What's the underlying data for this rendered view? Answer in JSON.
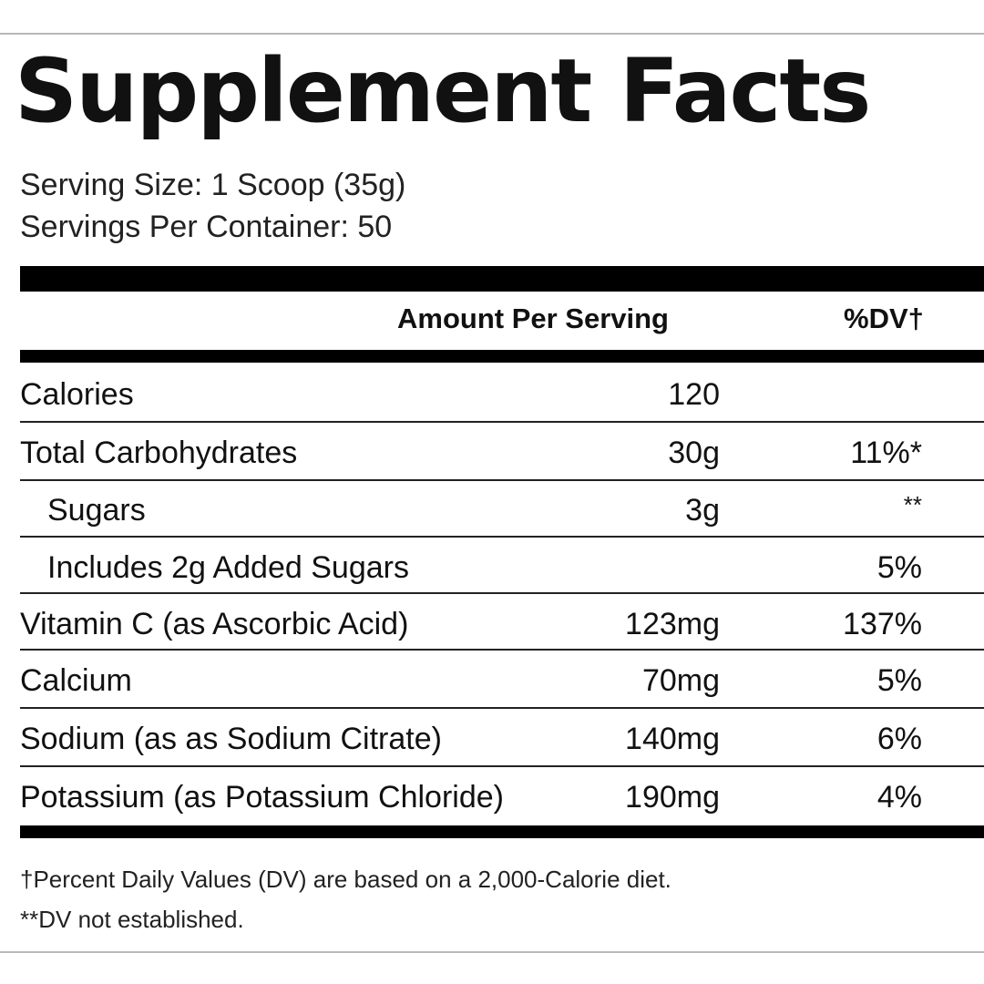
{
  "title": "Supplement Facts",
  "serving_size": "Serving Size: 1 Scoop (35g)",
  "servings_per_container": "Servings Per Container: 50",
  "header": {
    "amount": "Amount Per Serving",
    "dv": "%DV†"
  },
  "rows": [
    {
      "label": "Calories",
      "amount": "120",
      "dv": ""
    },
    {
      "label": "Total Carbohydrates",
      "amount": "30g",
      "dv": "11%*"
    },
    {
      "label": "Sugars",
      "amount": "3g",
      "dv": "**"
    },
    {
      "label": "Includes 2g Added Sugars",
      "amount": "",
      "dv": "5%"
    },
    {
      "label": "Vitamin C (as Ascorbic Acid)",
      "amount": "123mg",
      "dv": "137%"
    },
    {
      "label": "Calcium",
      "amount": "70mg",
      "dv": "5%"
    },
    {
      "label": "Sodium (as as Sodium Citrate)",
      "amount": "140mg",
      "dv": "6%"
    },
    {
      "label": "Potassium (as Potassium Chloride)",
      "amount": "190mg",
      "dv": "4%"
    }
  ],
  "footnotes": {
    "dv_basis": "†Percent Daily Values (DV) are based on a 2,000-Calorie diet.",
    "not_established": "**DV not established."
  }
}
